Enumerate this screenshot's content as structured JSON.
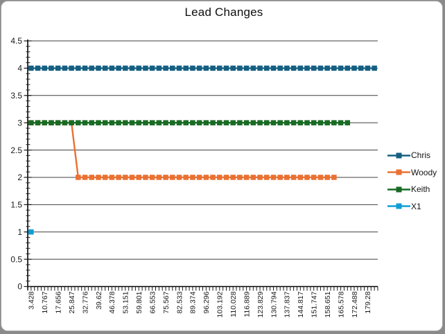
{
  "chart_data": {
    "type": "line",
    "title": "Lead Changes",
    "xlabel": "",
    "ylabel": "",
    "ylim": [
      0,
      4.5
    ],
    "y_tick_step": 0.5,
    "y_minor_tick_step": 0.1,
    "y_tick_labels": [
      "0",
      "0.5",
      "1",
      "1.5",
      "2",
      "2.5",
      "3",
      "3.5",
      "4",
      "4.5"
    ],
    "x_tick_labels": [
      "3.428",
      "10.767",
      "17.656",
      "25.847",
      "32.776",
      "39.62",
      "46.378",
      "53.151",
      "59.801",
      "66.553",
      "75.567",
      "82.533",
      "89.374",
      "96.296",
      "103.192",
      "110.028",
      "116.889",
      "123.829",
      "130.794",
      "137.837",
      "144.817",
      "151.747",
      "158.651",
      "165.578",
      "172.488",
      "179.28"
    ],
    "x_label_interval": 2,
    "n_points": 52,
    "grid": "horizontal-major",
    "grid_color": "#3f3f3f",
    "axis_color": "#000000",
    "tick_color": "#1a1a1a",
    "text_color": "#1a1a1a",
    "legend_position": "right",
    "marker": "square",
    "series": [
      {
        "name": "Chris",
        "color": "#156082",
        "segments": [
          {
            "from": 0,
            "to": 51,
            "value": 4
          }
        ]
      },
      {
        "name": "Woody",
        "color": "#E97132",
        "segments": [
          {
            "from": 0,
            "to": 6,
            "value": 3
          },
          {
            "from": 7,
            "to": 45,
            "value": 2
          }
        ]
      },
      {
        "name": "Keith",
        "color": "#196B24",
        "segments": [
          {
            "from": 0,
            "to": 47,
            "value": 3
          }
        ]
      },
      {
        "name": "X1",
        "color": "#0F9ED5",
        "segments": [
          {
            "from": 0,
            "to": 0,
            "value": 1
          }
        ]
      }
    ]
  }
}
